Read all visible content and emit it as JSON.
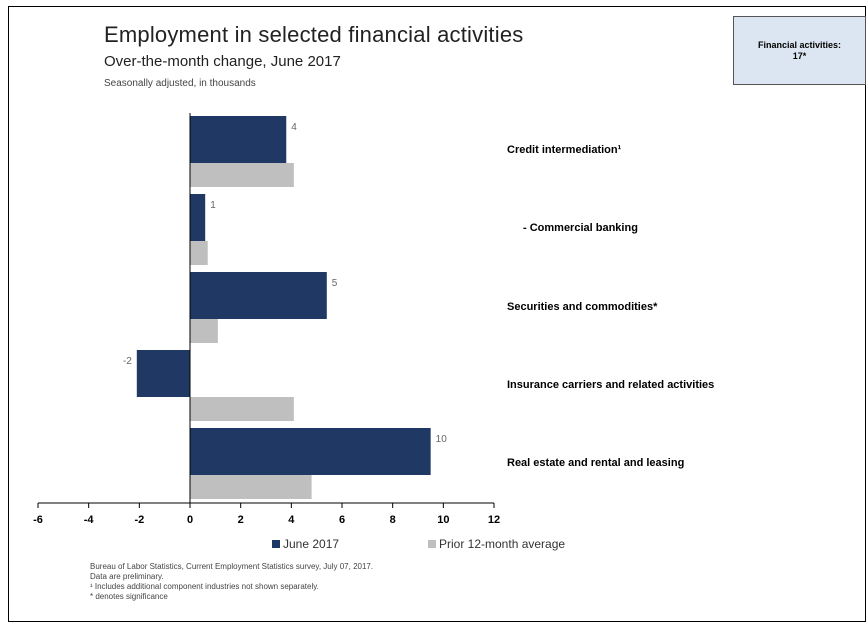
{
  "summary_box": {
    "line1": "Financial activities:",
    "line2": "17*"
  },
  "legend": {
    "june": "June 2017",
    "prior": "Prior 12-month average"
  },
  "notes": [
    "Bureau of Labor Statistics, Current Employment Statistics survey, July 07, 2017.",
    "Data are preliminary.",
    "¹ Includes additional component industries not shown separately.",
    "* denotes significance"
  ],
  "colors": {
    "june": "#1f3864",
    "prior": "#bfbfbf"
  },
  "chart_data": {
    "type": "bar",
    "orientation": "horizontal",
    "title": "Employment in selected financial activities",
    "subtitle": "Over-the-month change, June 2017",
    "note": "Seasonally adjusted, in thousands",
    "categories": [
      "Credit intermediation¹",
      "- Commercial banking",
      "Securities and commodities*",
      "Insurance carriers and related activities",
      "Real estate and rental and leasing"
    ],
    "series": [
      {
        "name": "June 2017",
        "values": [
          3.8,
          0.6,
          5.4,
          -2.1,
          9.5
        ],
        "labels": [
          "4",
          "1",
          "5",
          "-2",
          "10"
        ]
      },
      {
        "name": "Prior 12-month average",
        "values": [
          4.1,
          0.7,
          1.1,
          4.1,
          4.8
        ]
      }
    ],
    "xlim": [
      -6,
      12
    ],
    "xticks": [
      "-6",
      "-4",
      "-2",
      "0",
      "2",
      "4",
      "6",
      "8",
      "10",
      "12"
    ],
    "legend_position": "bottom",
    "grid": false
  }
}
